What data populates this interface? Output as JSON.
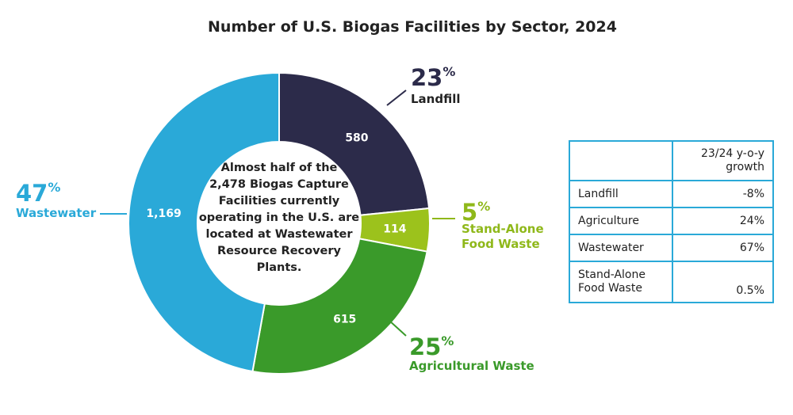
{
  "chart_data": {
    "type": "pie",
    "title": "Number of U.S. Biogas Facilities by Sector, 2024",
    "center_text": [
      "Almost half of the",
      "2,478 Biogas Capture",
      "Facilities currently",
      "operating in the U.S. are",
      "located at Wastewater",
      "Resource Recovery",
      "Plants."
    ],
    "slices": [
      {
        "category": "Landfill",
        "value": 580,
        "value_label": "580",
        "percent_label": "23",
        "color": "#2c2b4a"
      },
      {
        "category": "Stand-Alone Food Waste",
        "value": 114,
        "value_label": "114",
        "percent_label": "5",
        "color": "#9cc21c"
      },
      {
        "category": "Agricultural Waste",
        "value": 615,
        "value_label": "615",
        "percent_label": "25",
        "color": "#3a9a2a"
      },
      {
        "category": "Wastewater",
        "value": 1169,
        "value_label": "1,169",
        "percent_label": "47",
        "color": "#2aa9d8"
      }
    ],
    "outer_labels": {
      "landfill": {
        "pct": "23",
        "sign": "%",
        "line1": "Landfill",
        "color": "#2c2b4a"
      },
      "food": {
        "pct": "5",
        "sign": "%",
        "line1": "Stand-Alone",
        "line2": "Food Waste",
        "color": "#8fb81a"
      },
      "agri": {
        "pct": "25",
        "sign": "%",
        "line1": "Agricultural Waste",
        "color": "#3a9a2a"
      },
      "waste": {
        "pct": "47",
        "sign": "%",
        "line1": "Wastewater",
        "color": "#2aa9d8"
      }
    }
  },
  "table": {
    "header": [
      "",
      "23/24 y-o-y growth"
    ],
    "header_lines": [
      "23/24 y-o-y",
      "growth"
    ],
    "rows": [
      {
        "name": "Landfill",
        "value": "-8%"
      },
      {
        "name": "Agriculture",
        "value": "24%"
      },
      {
        "name": "Wastewater",
        "value": "67%"
      },
      {
        "name_lines": [
          "Stand-Alone",
          "Food Waste"
        ],
        "name": "Stand-Alone Food Waste",
        "value": "0.5%"
      }
    ]
  },
  "colors": {
    "accent": "#2aa9d8"
  }
}
